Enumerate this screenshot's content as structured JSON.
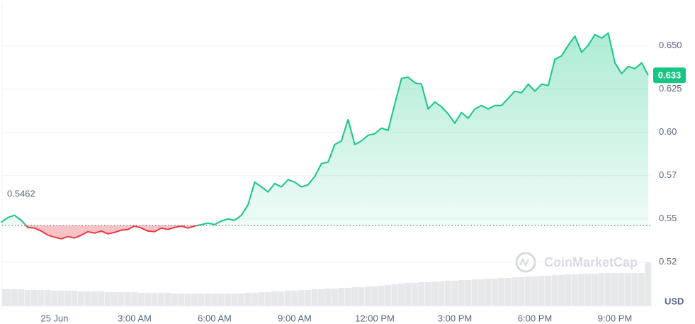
{
  "chart_data": {
    "type": "line",
    "categories": [
      null,
      null,
      null,
      null,
      null,
      null,
      null,
      null,
      "25 Jun",
      null,
      null,
      null,
      null,
      null,
      null,
      null,
      null,
      null,
      null,
      null,
      "3:00 AM",
      null,
      null,
      null,
      null,
      null,
      null,
      null,
      null,
      null,
      null,
      null,
      "6:00 AM",
      null,
      null,
      null,
      null,
      null,
      null,
      null,
      null,
      null,
      null,
      null,
      "9:00 AM",
      null,
      null,
      null,
      null,
      null,
      null,
      null,
      null,
      null,
      null,
      null,
      "12:00 PM",
      null,
      null,
      null,
      null,
      null,
      null,
      null,
      null,
      null,
      null,
      null,
      "3:00 PM",
      null,
      null,
      null,
      null,
      null,
      null,
      null,
      null,
      null,
      null,
      null,
      "6:00 PM",
      null,
      null,
      null,
      null,
      null,
      null,
      null,
      null,
      null,
      null,
      null,
      "9:00 PM",
      null,
      null,
      null,
      null,
      null
    ],
    "values": [
      0.548,
      0.5508,
      0.5521,
      0.5492,
      0.5451,
      0.5447,
      0.543,
      0.5406,
      0.5394,
      0.5385,
      0.5398,
      0.539,
      0.5406,
      0.5426,
      0.5418,
      0.543,
      0.5414,
      0.5422,
      0.5435,
      0.5439,
      0.5459,
      0.5447,
      0.543,
      0.5426,
      0.5447,
      0.5439,
      0.5451,
      0.5459,
      0.5447,
      0.5459,
      0.5467,
      0.5476,
      0.5467,
      0.5488,
      0.55,
      0.5492,
      0.5521,
      0.5582,
      0.5713,
      0.5685,
      0.5656,
      0.5705,
      0.5685,
      0.5726,
      0.5713,
      0.5685,
      0.5697,
      0.5746,
      0.582,
      0.5828,
      0.593,
      0.5951,
      0.6074,
      0.593,
      0.5951,
      0.5984,
      0.5992,
      0.6025,
      0.6012,
      0.6164,
      0.6312,
      0.632,
      0.6287,
      0.6279,
      0.6135,
      0.6176,
      0.6148,
      0.6107,
      0.6053,
      0.6115,
      0.6082,
      0.6135,
      0.6156,
      0.6135,
      0.6156,
      0.6156,
      0.6197,
      0.6238,
      0.623,
      0.6279,
      0.6238,
      0.6279,
      0.6271,
      0.6422,
      0.6443,
      0.6504,
      0.6557,
      0.6463,
      0.6504,
      0.6566,
      0.6545,
      0.6574,
      0.6402,
      0.634,
      0.6381,
      0.6369,
      0.6402,
      0.633
    ],
    "volume": [
      24,
      24,
      24,
      24,
      23,
      23,
      23,
      23,
      22,
      22,
      22,
      22,
      21,
      21,
      21,
      21,
      20,
      20,
      20,
      20,
      20,
      19,
      19,
      19,
      19,
      19,
      18,
      18,
      18,
      18,
      18,
      18,
      18,
      18,
      18,
      18,
      18,
      19,
      19,
      20,
      20,
      21,
      21,
      22,
      22,
      23,
      23,
      24,
      24,
      25,
      25,
      26,
      26,
      27,
      27,
      28,
      28,
      29,
      30,
      31,
      32,
      33,
      33,
      34,
      34,
      35,
      35,
      36,
      36,
      37,
      37,
      38,
      38,
      39,
      39,
      40,
      40,
      41,
      41,
      42,
      42,
      43,
      43,
      44,
      44,
      45,
      45,
      46,
      46,
      46,
      47,
      47,
      47,
      47,
      47,
      47,
      47,
      62
    ],
    "volume_lim": [
      0,
      100
    ],
    "ylim": [
      0.4995,
      0.6745
    ],
    "yticks": [
      {
        "value": 0.65,
        "label": "0.650"
      },
      0.625,
      {
        "value": 0.6,
        "label": "0.60"
      },
      {
        "value": 0.575,
        "label": "0.57"
      },
      0.55,
      {
        "value": 0.525,
        "label": "0.52"
      }
    ],
    "grid": true,
    "baseline": 0.5462,
    "last_price": 0.633,
    "currency": "USD",
    "watermark": "CoinMarketCap",
    "up_color": "#16c784",
    "down_color": "#ea3943",
    "volume_color": "#e6e8ec"
  }
}
